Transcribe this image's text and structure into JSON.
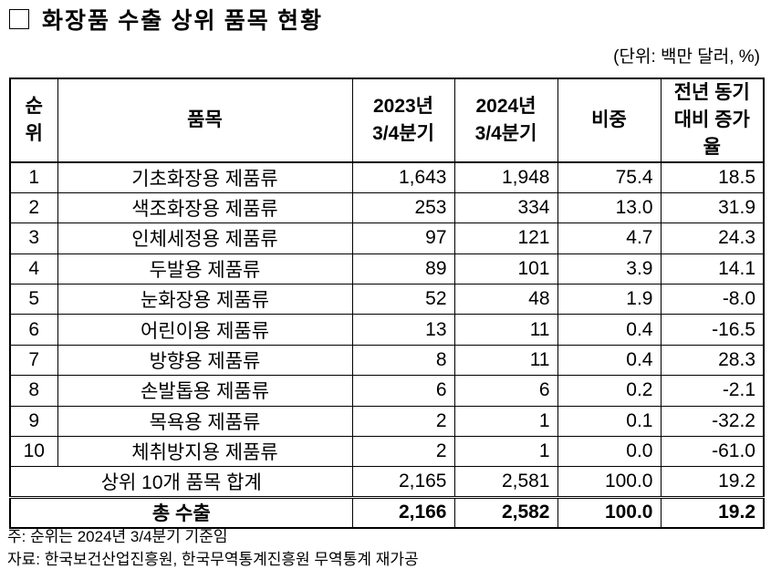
{
  "title": "화장품 수출 상위 품목 현황",
  "unit": "(단위: 백만 달러, %)",
  "table": {
    "header": [
      [
        "순",
        "위"
      ],
      [
        "품목"
      ],
      [
        "2023년",
        "3/4분기"
      ],
      [
        "2024년",
        "3/4분기"
      ],
      [
        "비중"
      ],
      [
        "전년 동기",
        "대비 증가율"
      ]
    ],
    "rows": [
      [
        "1",
        "기초화장용 제품류",
        "1,643",
        "1,948",
        "75.4",
        "18.5"
      ],
      [
        "2",
        "색조화장용 제품류",
        "253",
        "334",
        "13.0",
        "31.9"
      ],
      [
        "3",
        "인체세정용 제품류",
        "97",
        "121",
        "4.7",
        "24.3"
      ],
      [
        "4",
        "두발용 제품류",
        "89",
        "101",
        "3.9",
        "14.1"
      ],
      [
        "5",
        "눈화장용 제품류",
        "52",
        "48",
        "1.9",
        "-8.0"
      ],
      [
        "6",
        "어린이용 제품류",
        "13",
        "11",
        "0.4",
        "-16.5"
      ],
      [
        "7",
        "방향용 제품류",
        "8",
        "11",
        "0.4",
        "28.3"
      ],
      [
        "8",
        "손발톱용 제품류",
        "6",
        "6",
        "0.2",
        "-2.1"
      ],
      [
        "9",
        "목욕용 제품류",
        "2",
        "1",
        "0.1",
        "-32.2"
      ],
      [
        "10",
        "체취방지용 제품류",
        "2",
        "1",
        "0.0",
        "-61.0"
      ]
    ],
    "subtotal": [
      "상위 10개 품목 합계",
      "2,165",
      "2,581",
      "100.0",
      "19.2"
    ],
    "total": [
      "총 수출",
      "2,166",
      "2,582",
      "100.0",
      "19.2"
    ]
  },
  "notes": [
    "주: 순위는 2024년 3/4분기 기준임",
    "자료: 한국보건산업진흥원, 한국무역통계진흥원 무역통계 재가공"
  ]
}
